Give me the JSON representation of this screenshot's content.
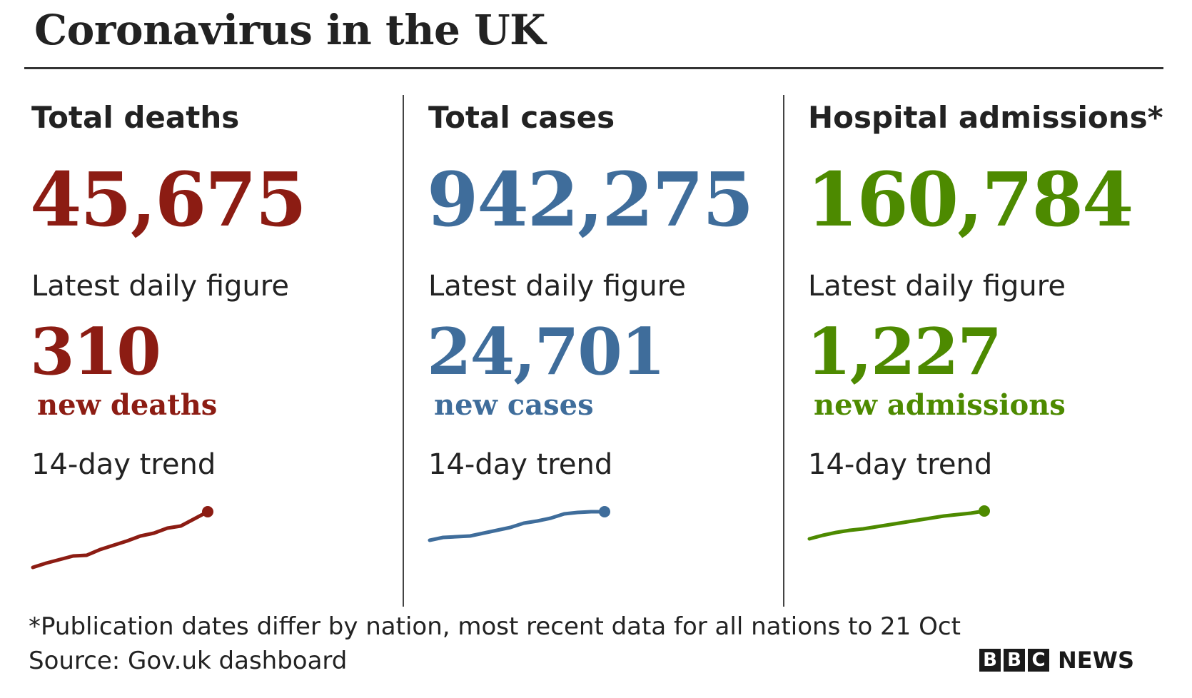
{
  "title": "Coronavirus in the UK",
  "colors": {
    "deaths": "#8c1c13",
    "cases": "#3f6d9b",
    "admissions": "#4d8a00"
  },
  "panels": [
    {
      "heading": "Total deaths",
      "total": "45,675",
      "latest_label": "Latest daily figure",
      "latest_value": "310",
      "latest_unit": "new deaths",
      "trend_label": "14-day trend",
      "color_key": "deaths"
    },
    {
      "heading": "Total cases",
      "total": "942,275",
      "latest_label": "Latest daily figure",
      "latest_value": "24,701",
      "latest_unit": "new cases",
      "trend_label": "14-day trend",
      "color_key": "cases"
    },
    {
      "heading": "Hospital admissions*",
      "total": "160,784",
      "latest_label": "Latest daily figure",
      "latest_value": "1,227",
      "latest_unit": "new admissions",
      "trend_label": "14-day trend",
      "color_key": "admissions"
    }
  ],
  "chart_data": [
    {
      "type": "line",
      "series": [
        {
          "values": [
            10,
            16,
            21,
            26,
            27,
            35,
            41,
            47,
            54,
            58,
            65,
            68,
            78,
            88
          ]
        }
      ],
      "ylim": [
        0,
        100
      ]
    },
    {
      "type": "line",
      "series": [
        {
          "values": [
            48,
            52,
            53,
            54,
            58,
            62,
            66,
            72,
            75,
            79,
            85,
            87,
            88,
            88
          ]
        }
      ],
      "ylim": [
        0,
        100
      ]
    },
    {
      "type": "line",
      "series": [
        {
          "values": [
            50,
            55,
            59,
            62,
            64,
            67,
            70,
            73,
            76,
            79,
            82,
            84,
            86,
            89
          ]
        }
      ],
      "ylim": [
        0,
        100
      ]
    }
  ],
  "footnote": "*Publication dates differ by nation, most recent data for all nations to 21 Oct",
  "source": "Source: Gov.uk dashboard",
  "logo": {
    "letters": [
      "B",
      "B",
      "C"
    ],
    "text": "NEWS"
  }
}
